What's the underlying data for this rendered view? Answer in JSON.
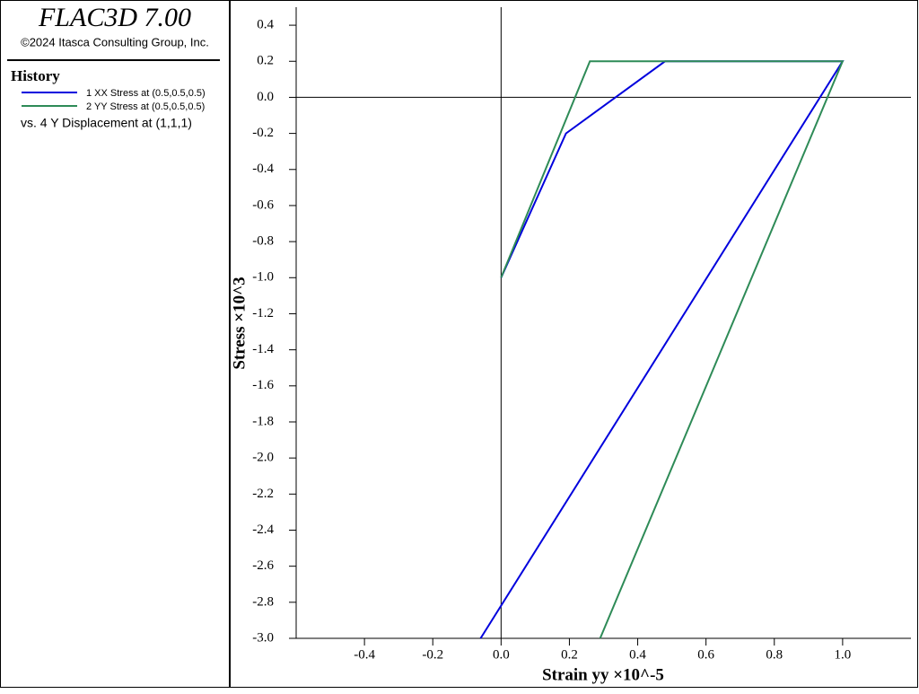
{
  "header": {
    "title": "FLAC3D 7.00",
    "copyright": "©2024 Itasca Consulting Group, Inc."
  },
  "legend_panel": {
    "title": "History",
    "note": "vs. 4 Y Displacement at (1,1,1)"
  },
  "chart_data": {
    "type": "line",
    "xlabel": "Strain yy ×10^-5",
    "ylabel": "Stress ×10^3",
    "xlim": [
      -0.6,
      1.2
    ],
    "ylim": [
      -3.0,
      0.5
    ],
    "xticks": [
      -0.4,
      -0.2,
      {
        "value": 0,
        "label": "0.0"
      },
      0.2,
      0.4,
      0.6,
      0.8,
      {
        "value": 1,
        "label": "1.0"
      }
    ],
    "yticks": [
      0.4,
      0.2,
      {
        "value": 0,
        "label": "0.0"
      },
      -0.2,
      -0.4,
      -0.6,
      -0.8,
      {
        "value": -1,
        "label": "-1.0"
      },
      -1.2,
      -1.4,
      -1.6,
      -1.8,
      {
        "value": -2,
        "label": "-2.0"
      },
      -2.2,
      -2.4,
      -2.6,
      -2.8,
      {
        "value": -3,
        "label": "-3.0"
      }
    ],
    "series": [
      {
        "name": "1 XX Stress at (0.5,0.5,0.5)",
        "color": "#0000dd",
        "x": [
          0,
          0.19,
          0.48,
          1.0,
          -0.06
        ],
        "values": [
          -1.0,
          -0.2,
          0.2,
          0.2,
          -3.0
        ]
      },
      {
        "name": "2 YY Stress at (0.5,0.5,0.5)",
        "color": "#2e8b57",
        "x": [
          0,
          0.26,
          1.0,
          0.29
        ],
        "values": [
          -1.0,
          0.2,
          0.2,
          -3.0
        ]
      }
    ]
  }
}
